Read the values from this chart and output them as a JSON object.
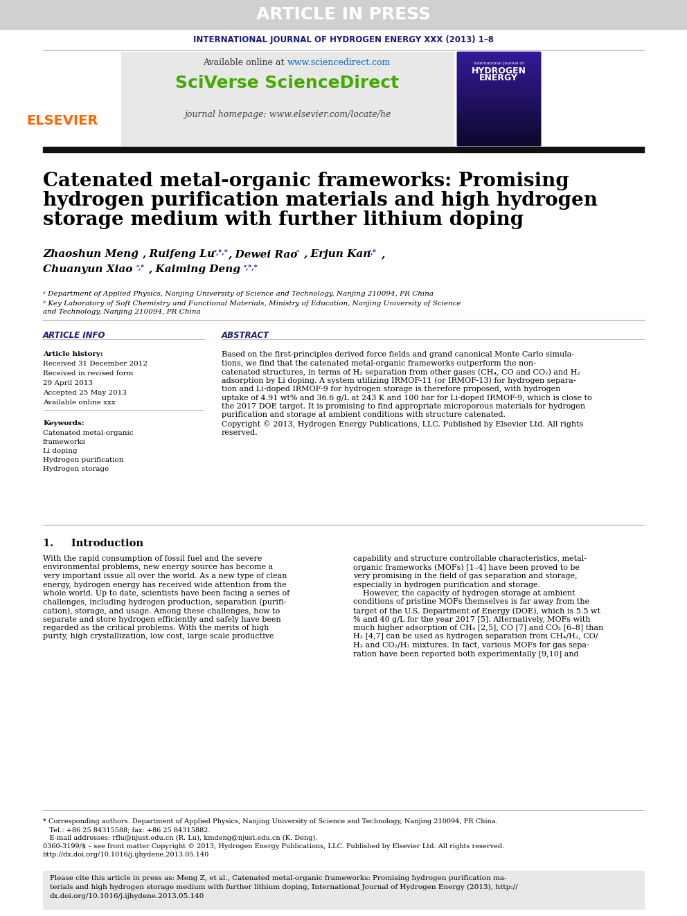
{
  "article_in_press_text": "ARTICLE IN PRESS",
  "article_in_press_bg": "#d0d0d0",
  "article_in_press_color": "#ffffff",
  "journal_line": "INTERNATIONAL JOURNAL OF HYDROGEN ENERGY XXX (2013) 1–8",
  "journal_line_color": "#1a1a7a",
  "available_online": "Available online at ",
  "sciencedirect_url": "www.sciencedirect.com",
  "sciencedirect_url_color": "#0066cc",
  "sciverse_text": "SciVerse ScienceDirect",
  "sciverse_color": "#44aa00",
  "journal_homepage": "journal homepage: www.elsevier.com/locate/he",
  "journal_homepage_color": "#333333",
  "elsevier_color": "#ff6600",
  "header_bg": "#e8e8e8",
  "black_bar_color": "#111111",
  "article_title_line1": "Catenated metal-organic frameworks: Promising",
  "article_title_line2": "hydrogen purification materials and high hydrogen",
  "article_title_line3": "storage medium with further lithium doping",
  "article_title_color": "#000000",
  "authors_line1": "Zhaoshun Meng °, Ruifeng Lu °ᵇ,*, Dewei Rao °, Erjun Kan °ᵇ,",
  "authors_line2": "Chuanyun Xiao °ᵇ, Kaiming Deng °ᵇ,*",
  "affil1": "ᵃ Department of Applied Physics, Nanjing University of Science and Technology, Nanjing 210094, PR China",
  "affil2": "ᵇ Key Laboratory of Soft Chemistry and Functional Materials, Ministry of Education, Nanjing University of Science",
  "affil2b": "and Technology, Nanjing 210094, PR China",
  "section_article_info": "ARTICLE INFO",
  "section_abstract": "ABSTRACT",
  "article_history_label": "Article history:",
  "received_label": "Received 31 December 2012",
  "revised_label": "Received in revised form",
  "revised_date": "29 April 2013",
  "accepted_label": "Accepted 25 May 2013",
  "available_label": "Available online xxx",
  "keywords_label": "Keywords:",
  "kw1": "Catenated metal-organic",
  "kw2": "frameworks",
  "kw3": "Li doping",
  "kw4": "Hydrogen purification",
  "kw5": "Hydrogen storage",
  "abstract_text": "Based on the first-principles derived force fields and grand canonical Monte Carlo simulations, we find that the catenated metal-organic frameworks outperform the non-catenated structures, in terms of H₂ separation from other gases (CH₄, CO and CO₂) and H₂ adsorption by Li doping. A system utilizing IRMOF-11 (or IRMOF-13) for hydrogen separation and Li-doped IRMOF-9 for hydrogen storage is therefore proposed, with hydrogen uptake of 4.91 wt% and 36.6 g/L at 243 K and 100 bar for Li-doped IRMOF-9, which is close to the 2017 DOE target. It is promising to find appropriate microporous materials for hydrogen purification and storage at ambient conditions with structure catenated.\nCopyright © 2013, Hydrogen Energy Publications, LLC. Published by Elsevier Ltd. All rights reserved.",
  "intro_heading": "1.     Introduction",
  "intro_text_col1": "With the rapid consumption of fossil fuel and the severe environmental problems, new energy source has become a very important issue all over the world. As a new type of clean energy, hydrogen energy has received wide attention from the whole world. Up to date, scientists have been facing a series of challenges, including hydrogen production, separation (purification), storage, and usage. Among these challenges, how to separate and store hydrogen efficiently and safely have been regarded as the critical problems. With the merits of high purity, high crystallization, low cost, large scale productive",
  "intro_text_col2": "capability and structure controllable characteristics, metal-organic frameworks (MOFs) [1–4] have been proved to be very promising in the field of gas separation and storage, especially in hydrogen purification and storage.\n    However, the capacity of hydrogen storage at ambient conditions of pristine MOFs themselves is far away from the target of the U.S. Department of Energy (DOE), which is 5.5 wt % and 40 g/L for the year 2017 [5]. Alternatively, MOFs with much higher adsorption of CH₄ [2,5], CO [7] and CO₂ [6–8] than H₂ [4,7] can be used as hydrogen separation from CH₄/H₂, CO/H₂ and CO₂/H₂ mixtures. In fact, various MOFs for gas separation have been reported both experimentally [9,10] and",
  "footer_note": "* Corresponding authors. Department of Applied Physics, Nanjing University of Science and Technology, Nanjing 210094, PR China.\n   Tel.: +86 25 84315588; fax: +86 25 84315882.\n   E-mail addresses: rflu@njust.edu.cn (R. Lu), kmdeng@njust.edu.cn (K. Deng).\n0360-3199/$ – see front matter Copyright © 2013, Hydrogen Energy Publications, LLC. Published by Elsevier Ltd. All rights reserved.\nhttp://dx.doi.org/10.1016/j.ijhydene.2013.05.140",
  "cite_box_text": "Please cite this article in press as: Meng Z, et al., Catenated metal-organic frameworks: Promising hydrogen purification materials and high hydrogen storage medium with further lithium doping, International Journal of Hydrogen Energy (2013), http://dx.doi.org/10.1016/j.ijhydene.2013.05.140",
  "cite_box_bg": "#e8e8e8",
  "page_bg": "#ffffff",
  "section_color": "#1a1a7a",
  "thin_line_color": "#aaaaaa",
  "thick_line_color": "#000000"
}
